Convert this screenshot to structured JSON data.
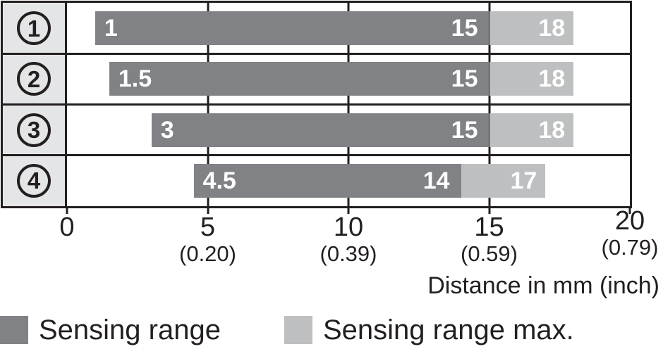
{
  "chart_data": {
    "type": "bar",
    "orientation": "horizontal",
    "title": "",
    "xlabel": "Distance in mm (inch)",
    "xlim": [
      0,
      20
    ],
    "grid": "vertical-lines-at-ticks",
    "legend_position": "bottom",
    "x_ticks": [
      {
        "mm": 0,
        "label": "0",
        "inch_label": ""
      },
      {
        "mm": 5,
        "label": "5",
        "inch_label": "(0.20)"
      },
      {
        "mm": 10,
        "label": "10",
        "inch_label": "(0.39)"
      },
      {
        "mm": 15,
        "label": "15",
        "inch_label": "(0.59)"
      },
      {
        "mm": 20,
        "label": "20",
        "inch_label": "(0.79)"
      }
    ],
    "rows": [
      {
        "id": "1",
        "glyph": "①",
        "sensing_start": 1,
        "sensing_end": 15,
        "max_end": 18,
        "labels": {
          "start": "1",
          "end": "15",
          "max": "18"
        }
      },
      {
        "id": "2",
        "glyph": "②",
        "sensing_start": 1.5,
        "sensing_end": 15,
        "max_end": 18,
        "labels": {
          "start": "1.5",
          "end": "15",
          "max": "18"
        }
      },
      {
        "id": "3",
        "glyph": "③",
        "sensing_start": 3,
        "sensing_end": 15,
        "max_end": 18,
        "labels": {
          "start": "3",
          "end": "15",
          "max": "18"
        }
      },
      {
        "id": "4",
        "glyph": "④",
        "sensing_start": 4.5,
        "sensing_end": 14,
        "max_end": 17,
        "labels": {
          "start": "4.5",
          "end": "14",
          "max": "17"
        }
      }
    ],
    "legend": [
      {
        "name": "Sensing range",
        "color": "#808285"
      },
      {
        "name": "Sensing range max.",
        "color": "#bdbfc1"
      }
    ],
    "colors": {
      "sensing": "#808285",
      "sensing_max": "#bdbfc1",
      "row_header_bg": "#e4e5e6",
      "border": "#231f20",
      "bar_label_text": "#ffffff",
      "axis_text": "#231f20"
    }
  }
}
